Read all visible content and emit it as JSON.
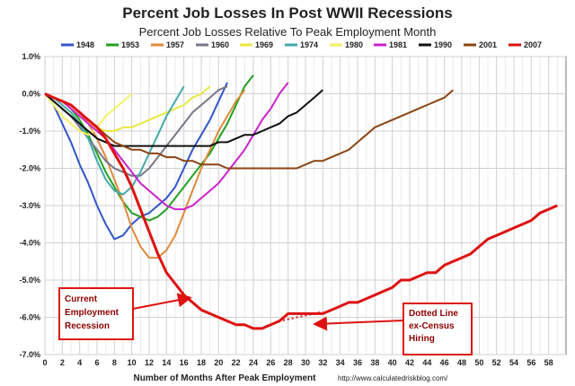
{
  "chart_data": {
    "type": "line",
    "title": "Percent Job Losses In Post WWII Recessions",
    "subtitle": "Percent Job Losses Relative To Peak Employment Month",
    "xlabel": "Number of Months After Peak Employment",
    "source": "http://www.calculatedriskblog.com/",
    "xlim": [
      0,
      60
    ],
    "ylim": [
      -7.0,
      1.0
    ],
    "x_ticks": [
      0,
      2,
      4,
      6,
      8,
      10,
      12,
      14,
      16,
      18,
      20,
      22,
      24,
      26,
      28,
      30,
      32,
      34,
      36,
      38,
      40,
      42,
      44,
      46,
      48,
      50,
      52,
      54,
      56,
      58
    ],
    "y_ticks": [
      1.0,
      0.0,
      -1.0,
      -2.0,
      -3.0,
      -4.0,
      -5.0,
      -6.0,
      -7.0
    ],
    "y_tick_labels": [
      "1.0%",
      "0.0%",
      "-1.0%",
      "-2.0%",
      "-3.0%",
      "-4.0%",
      "-5.0%",
      "-6.0%",
      "-7.0%"
    ],
    "grid": true,
    "series": [
      {
        "name": "1948",
        "color": "#3355cc",
        "values": [
          0,
          -0.3,
          -0.8,
          -1.3,
          -1.9,
          -2.4,
          -3.0,
          -3.5,
          -3.9,
          -3.8,
          -3.5,
          -3.3,
          -3.2,
          -3.0,
          -2.8,
          -2.5,
          -2.0,
          -1.5,
          -1.1,
          -0.7,
          -0.2,
          0.3
        ]
      },
      {
        "name": "1953",
        "color": "#22a022",
        "values": [
          0,
          -0.1,
          -0.2,
          -0.4,
          -0.7,
          -1.1,
          -1.6,
          -2.1,
          -2.5,
          -2.9,
          -3.2,
          -3.3,
          -3.4,
          -3.3,
          -3.1,
          -2.8,
          -2.5,
          -2.2,
          -1.9,
          -1.6,
          -1.2,
          -0.8,
          -0.3,
          0.2,
          0.5
        ]
      },
      {
        "name": "1957",
        "color": "#e08a3c",
        "values": [
          0,
          -0.1,
          -0.2,
          -0.3,
          -0.5,
          -0.8,
          -1.2,
          -1.7,
          -2.3,
          -2.9,
          -3.6,
          -4.1,
          -4.4,
          -4.4,
          -4.2,
          -3.8,
          -3.2,
          -2.6,
          -2.0,
          -1.5,
          -1.0,
          -0.6,
          -0.2,
          0.1
        ]
      },
      {
        "name": "1960",
        "color": "#777788",
        "values": [
          0,
          -0.2,
          -0.4,
          -0.6,
          -0.9,
          -1.2,
          -1.5,
          -1.8,
          -2.0,
          -2.1,
          -2.2,
          -2.2,
          -2.0,
          -1.7,
          -1.4,
          -1.1,
          -0.8,
          -0.5,
          -0.3,
          -0.1,
          0.1,
          0.2
        ]
      },
      {
        "name": "1969",
        "color": "#e8e840",
        "values": [
          0,
          -0.1,
          -0.2,
          -0.4,
          -0.6,
          -0.8,
          -0.9,
          -1.0,
          -1.0,
          -0.9,
          -0.9,
          -0.8,
          -0.7,
          -0.6,
          -0.5,
          -0.4,
          -0.3,
          -0.1,
          0.0,
          0.2
        ]
      },
      {
        "name": "1974",
        "color": "#44aaaa",
        "values": [
          0,
          -0.1,
          -0.3,
          -0.5,
          -0.8,
          -1.2,
          -1.8,
          -2.3,
          -2.6,
          -2.7,
          -2.5,
          -2.1,
          -1.6,
          -1.1,
          -0.6,
          -0.2,
          0.2
        ]
      },
      {
        "name": "1980",
        "color": "#f2f266",
        "values": [
          0,
          -0.3,
          -0.6,
          -0.8,
          -1.0,
          -1.1,
          -0.9,
          -0.6,
          -0.4,
          -0.2,
          0.0
        ]
      },
      {
        "name": "1981",
        "color": "#cc22cc",
        "values": [
          0,
          -0.1,
          -0.2,
          -0.4,
          -0.6,
          -0.8,
          -1.0,
          -1.2,
          -1.5,
          -1.8,
          -2.1,
          -2.4,
          -2.6,
          -2.8,
          -3.0,
          -3.1,
          -3.1,
          -3.0,
          -2.8,
          -2.6,
          -2.4,
          -2.1,
          -1.8,
          -1.5,
          -1.1,
          -0.7,
          -0.4,
          0.0,
          0.3
        ]
      },
      {
        "name": "1990",
        "color": "#111111",
        "values": [
          0,
          -0.2,
          -0.4,
          -0.6,
          -0.8,
          -1.0,
          -1.2,
          -1.3,
          -1.4,
          -1.4,
          -1.4,
          -1.4,
          -1.4,
          -1.4,
          -1.4,
          -1.4,
          -1.4,
          -1.4,
          -1.4,
          -1.4,
          -1.3,
          -1.3,
          -1.2,
          -1.1,
          -1.1,
          -1.0,
          -0.9,
          -0.8,
          -0.6,
          -0.5,
          -0.3,
          -0.1,
          0.1
        ]
      },
      {
        "name": "2001",
        "color": "#8b4513",
        "values": [
          0,
          -0.1,
          -0.2,
          -0.3,
          -0.5,
          -0.7,
          -0.9,
          -1.1,
          -1.3,
          -1.4,
          -1.5,
          -1.5,
          -1.6,
          -1.6,
          -1.7,
          -1.7,
          -1.8,
          -1.8,
          -1.9,
          -1.9,
          -1.9,
          -2.0,
          -2.0,
          -2.0,
          -2.0,
          -2.0,
          -2.0,
          -2.0,
          -2.0,
          -2.0,
          -1.9,
          -1.8,
          -1.8,
          -1.7,
          -1.6,
          -1.5,
          -1.3,
          -1.1,
          -0.9,
          -0.8,
          -0.7,
          -0.6,
          -0.5,
          -0.4,
          -0.3,
          -0.2,
          -0.1,
          0.1
        ]
      },
      {
        "name": "2007",
        "color": "#dd1111",
        "values": [
          0,
          -0.1,
          -0.2,
          -0.3,
          -0.5,
          -0.7,
          -0.9,
          -1.2,
          -1.6,
          -2.0,
          -2.5,
          -3.1,
          -3.7,
          -4.3,
          -4.8,
          -5.1,
          -5.4,
          -5.6,
          -5.8,
          -5.9,
          -6.0,
          -6.1,
          -6.2,
          -6.2,
          -6.3,
          -6.3,
          -6.2,
          -6.1,
          -5.9,
          -5.9,
          -5.9,
          -5.9,
          -5.9,
          -5.8,
          -5.7,
          -5.6,
          -5.6,
          -5.5,
          -5.4,
          -5.3,
          -5.2,
          -5.0,
          -5.0,
          -4.9,
          -4.8,
          -4.8,
          -4.6,
          -4.5,
          -4.4,
          -4.3,
          -4.1,
          -3.9,
          -3.8,
          -3.7,
          -3.6,
          -3.5,
          -3.4,
          -3.2,
          -3.1,
          -3.0
        ]
      }
    ],
    "dotted_2007_ex_census": {
      "x": [
        25,
        26,
        27,
        28,
        29,
        30,
        31,
        32
      ],
      "values": [
        -6.3,
        -6.2,
        -6.1,
        -6.05,
        -6.0,
        -5.95,
        -5.9,
        -5.85
      ]
    },
    "annotations": [
      {
        "lines": [
          "Current",
          "Employment",
          "Recession"
        ]
      },
      {
        "lines": [
          "Dotted Line",
          "ex-Census",
          "Hiring"
        ]
      }
    ]
  }
}
